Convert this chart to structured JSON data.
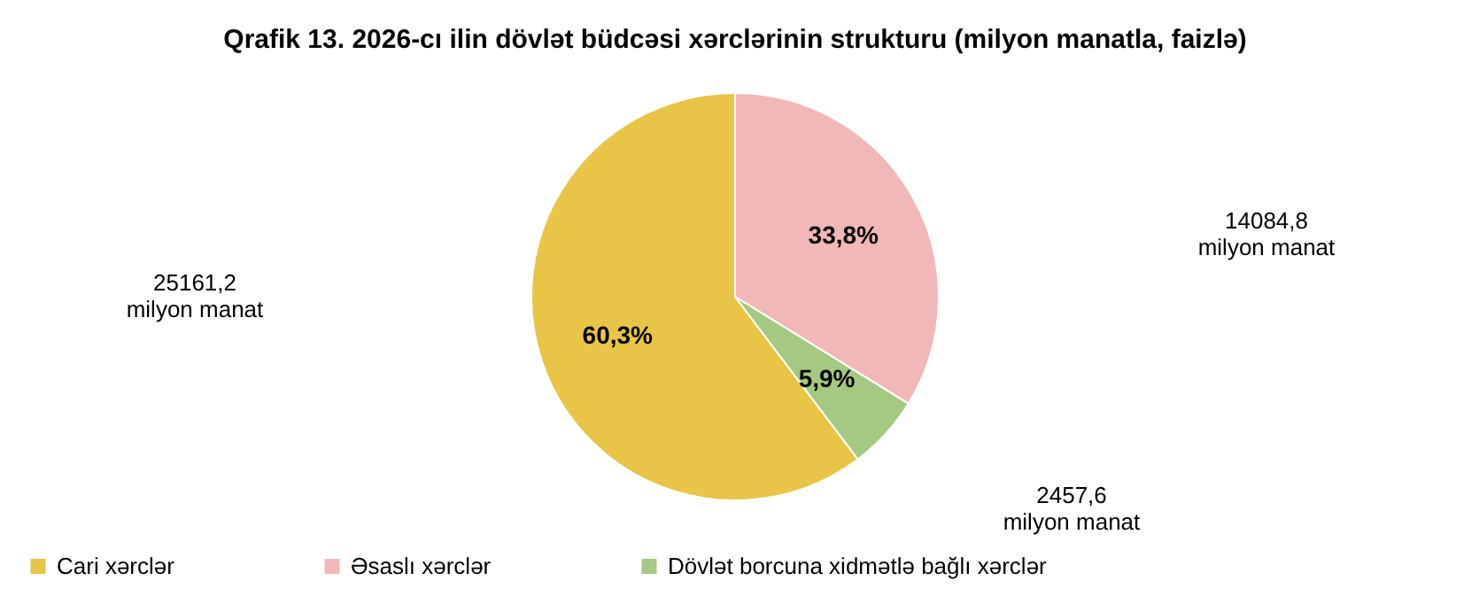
{
  "chart_data": {
    "type": "pie",
    "title": "Qrafik 13. 2026-cı ilin dövlət büdcəsi xərclərinin strukturu (milyon manatla, faizlə)",
    "categories": [
      "Cari xərclər",
      "Əsaslı xərclər",
      "Dövlət borcuna xidmətlə bağlı xərclər"
    ],
    "values": [
      60.3,
      33.8,
      5.9
    ],
    "value_labels": [
      "60,3%",
      "33,8%",
      "5,9%"
    ],
    "colors": [
      "#e8c547",
      "#f2b8b8",
      "#a5c882"
    ],
    "annotations": [
      "25161,2 milyon manat",
      "14084,8 milyon manat",
      "2457,6 milyon manat"
    ],
    "legend": "bottom"
  }
}
